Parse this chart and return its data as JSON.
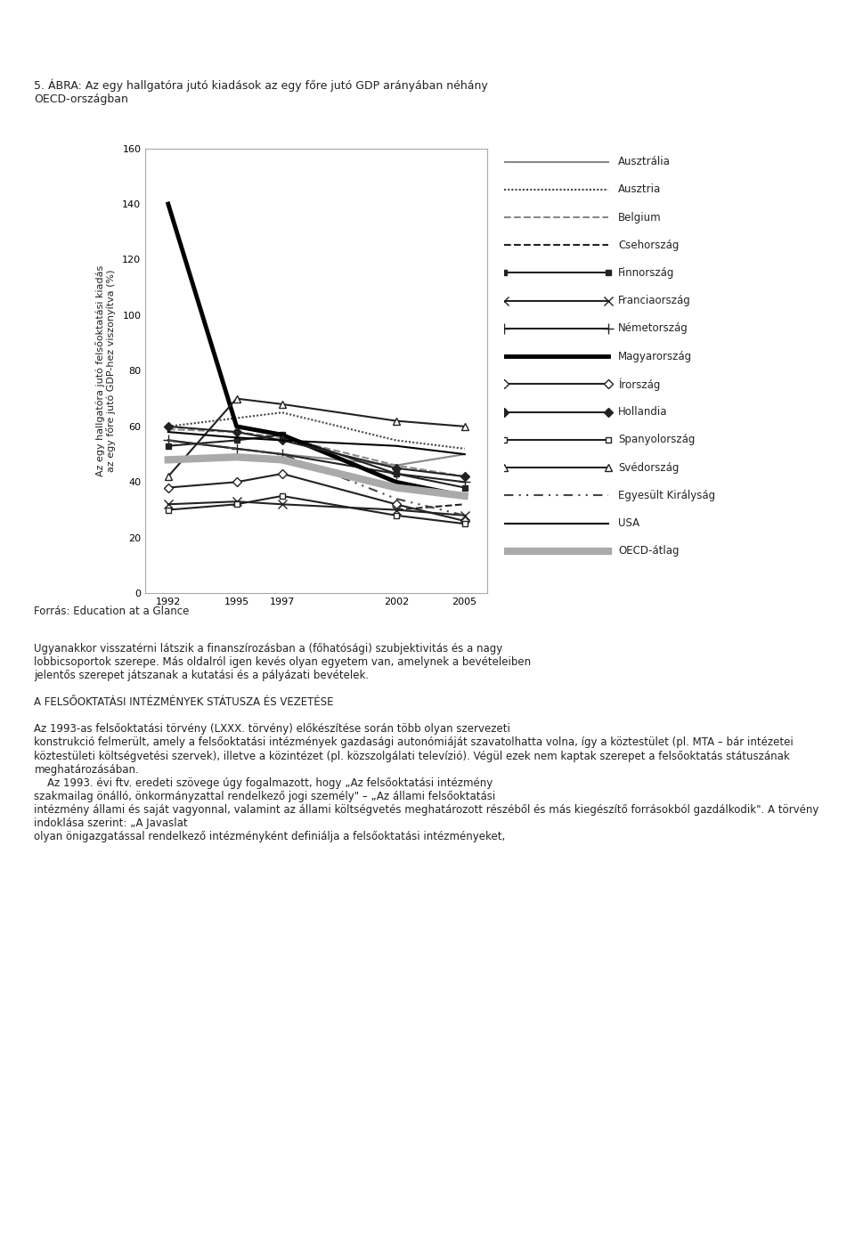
{
  "title": "5. ÁBRA: Az egy hallgatóra jutó kiadások az egy főre jutó GDP arányában néhány\nOECD-országban",
  "ylabel": "Az egy hallgatóra jutó felsőoktatási kiadás\naz egy főre jutó GDP-hez viszonyítva (%)",
  "source": "Forrás: Education at a Glance",
  "years": [
    1992,
    1995,
    1997,
    2002,
    2005
  ],
  "ylim": [
    0,
    160
  ],
  "yticks": [
    0,
    20,
    40,
    60,
    80,
    100,
    120,
    140,
    160
  ],
  "series": [
    {
      "name": "Ausztrália",
      "color": "#888888",
      "linestyle": "solid",
      "linewidth": 1.5,
      "marker": null,
      "markersize": 5,
      "values": [
        55,
        52,
        50,
        46,
        50
      ]
    },
    {
      "name": "Ausztria",
      "color": "#444444",
      "linestyle": "dotted",
      "linewidth": 1.5,
      "marker": null,
      "markersize": 5,
      "values": [
        60,
        63,
        65,
        55,
        52
      ]
    },
    {
      "name": "Belgium",
      "color": "#888888",
      "linestyle": "dashed",
      "linewidth": 1.5,
      "marker": null,
      "markersize": 5,
      "values": [
        59,
        58,
        56,
        46,
        42
      ]
    },
    {
      "name": "Csehország",
      "color": "#222222",
      "linestyle": "dashed",
      "linewidth": 1.5,
      "marker": null,
      "markersize": 5,
      "values": [
        null,
        null,
        null,
        30,
        32
      ]
    },
    {
      "name": "Finnország",
      "color": "#222222",
      "linestyle": "solid",
      "linewidth": 1.5,
      "marker": "s",
      "markersize": 5,
      "values": [
        53,
        55,
        57,
        43,
        38
      ]
    },
    {
      "name": "Franciaország",
      "color": "#222222",
      "linestyle": "solid",
      "linewidth": 1.5,
      "marker": "x",
      "markersize": 7,
      "values": [
        32,
        33,
        32,
        30,
        28
      ]
    },
    {
      "name": "Németország",
      "color": "#222222",
      "linestyle": "solid",
      "linewidth": 1.5,
      "marker": "+",
      "markersize": 8,
      "values": [
        55,
        52,
        50,
        43,
        40
      ]
    },
    {
      "name": "Magyarország",
      "color": "#000000",
      "linestyle": "solid",
      "linewidth": 3.5,
      "marker": null,
      "markersize": 5,
      "values": [
        140,
        60,
        57,
        40,
        35
      ]
    },
    {
      "name": "Írország",
      "color": "#222222",
      "linestyle": "solid",
      "linewidth": 1.5,
      "marker": "D",
      "markersize": 5,
      "values": [
        38,
        40,
        43,
        32,
        26
      ]
    },
    {
      "name": "Hollandia",
      "color": "#222222",
      "linestyle": "solid",
      "linewidth": 1.5,
      "marker": "D",
      "markersize": 5,
      "values": [
        60,
        58,
        55,
        45,
        42
      ]
    },
    {
      "name": "Spanyolország",
      "color": "#222222",
      "linestyle": "solid",
      "linewidth": 1.5,
      "marker": "s",
      "markersize": 5,
      "values": [
        30,
        32,
        35,
        28,
        25
      ]
    },
    {
      "name": "Svédország",
      "color": "#222222",
      "linestyle": "solid",
      "linewidth": 1.5,
      "marker": "^",
      "markersize": 6,
      "values": [
        42,
        70,
        68,
        62,
        60
      ]
    },
    {
      "name": "Egyesült Királyság",
      "color": "#444444",
      "linestyle": "dashed",
      "linewidth": 1.5,
      "marker": null,
      "markersize": 5,
      "values": [
        55,
        52,
        50,
        34,
        28
      ]
    },
    {
      "name": "USA",
      "color": "#000000",
      "linestyle": "solid",
      "linewidth": 1.5,
      "marker": null,
      "markersize": 5,
      "values": [
        58,
        56,
        55,
        53,
        50
      ]
    },
    {
      "name": "OECD-átlag",
      "color": "#999999",
      "linestyle": "solid",
      "linewidth": 6,
      "marker": null,
      "markersize": 5,
      "values": [
        48,
        49,
        48,
        38,
        35
      ]
    }
  ],
  "background_color": "#ffffff",
  "plot_bg_color": "#ffffff",
  "font_color": "#222222"
}
